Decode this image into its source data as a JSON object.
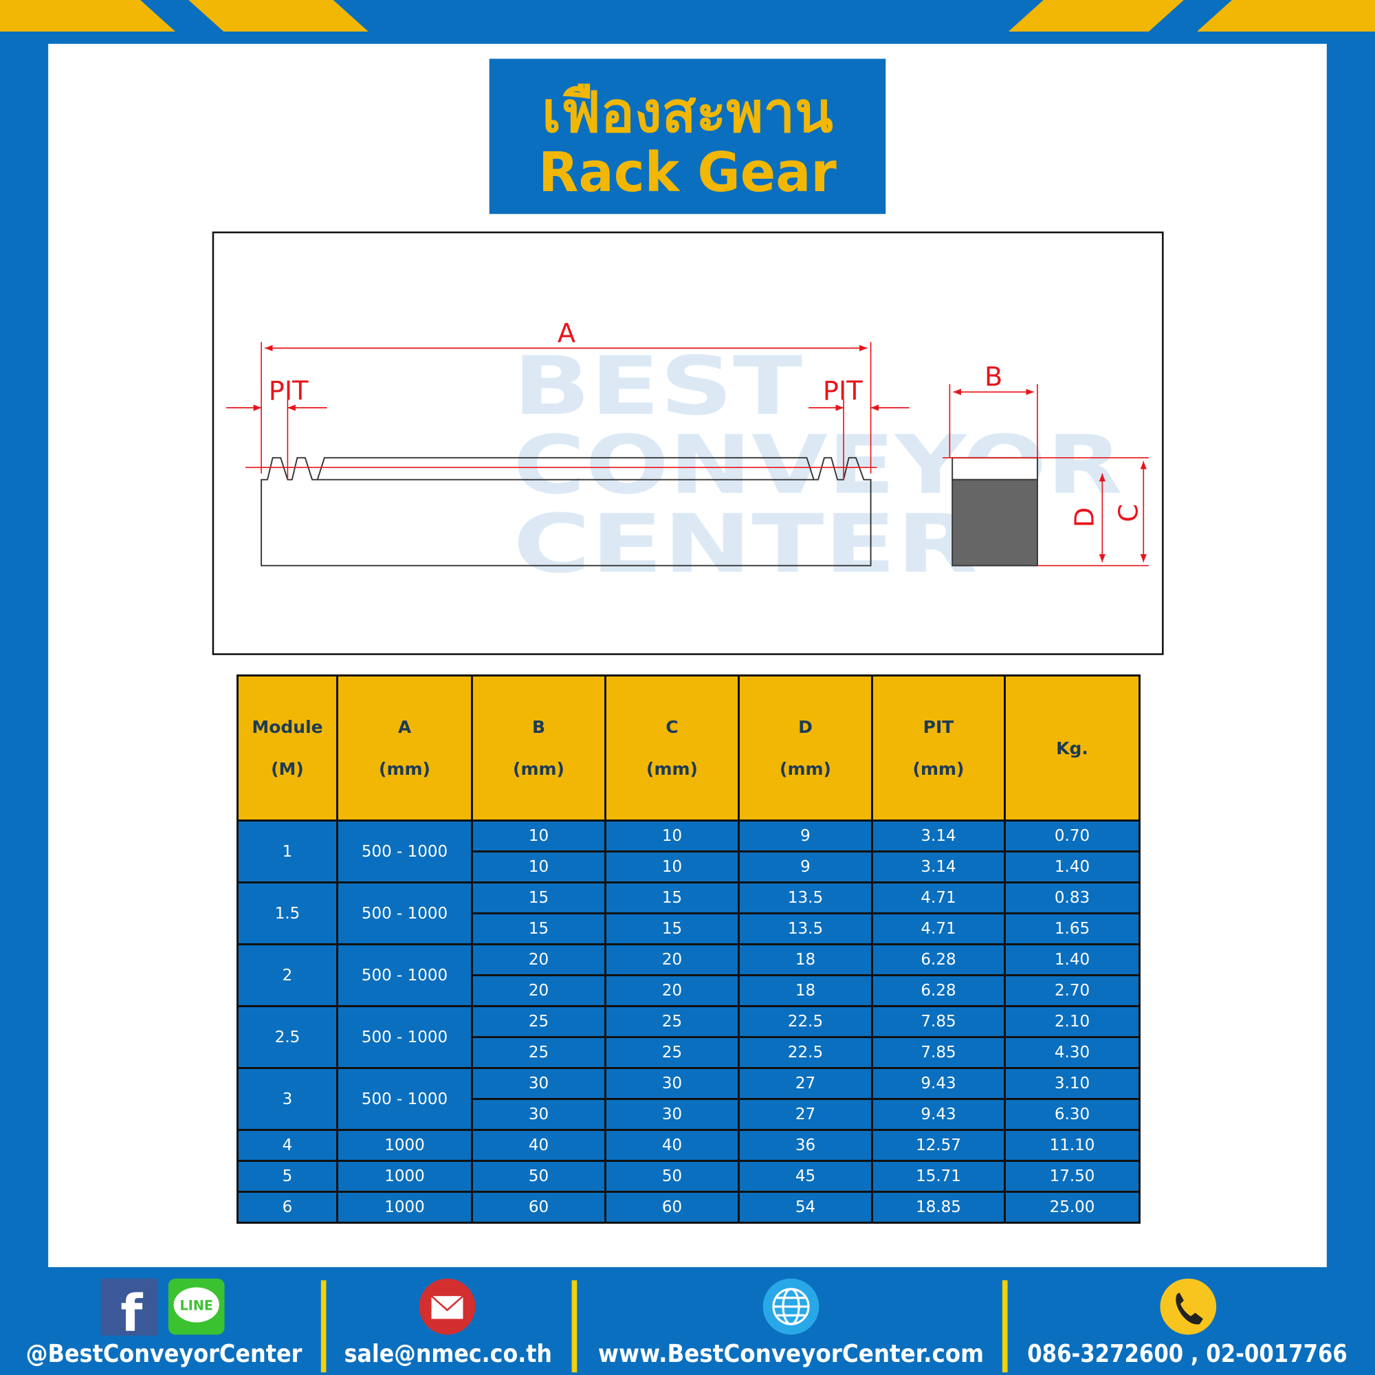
{
  "header": {
    "title_thai": "เฟืองสะพาน",
    "title_english": "Rack Gear"
  },
  "diagram": {
    "label_a": "A",
    "label_pit_left": "PIT",
    "label_pit_right": "PIT",
    "label_b": "B",
    "label_c": "C",
    "label_d": "D",
    "watermark": [
      "BEST",
      "CONVEYOR",
      "CENTER"
    ]
  },
  "table": {
    "header": [
      [
        "Module",
        "(M)"
      ],
      [
        "A",
        "(mm)"
      ],
      [
        "B",
        "(mm)"
      ],
      [
        "C",
        "(mm)"
      ],
      [
        "D",
        "(mm)"
      ],
      [
        "PIT",
        "(mm)"
      ],
      [
        "Kg."
      ]
    ],
    "groups": [
      {
        "module": "1",
        "a": "500 - 1000",
        "rows": [
          [
            "10",
            "10",
            "9",
            "3.14",
            "0.70"
          ],
          [
            "10",
            "10",
            "9",
            "3.14",
            "1.40"
          ]
        ]
      },
      {
        "module": "1.5",
        "a": "500 - 1000",
        "rows": [
          [
            "15",
            "15",
            "13.5",
            "4.71",
            "0.83"
          ],
          [
            "15",
            "15",
            "13.5",
            "4.71",
            "1.65"
          ]
        ]
      },
      {
        "module": "2",
        "a": "500 - 1000",
        "rows": [
          [
            "20",
            "20",
            "18",
            "6.28",
            "1.40"
          ],
          [
            "20",
            "20",
            "18",
            "6.28",
            "2.70"
          ]
        ]
      },
      {
        "module": "2.5",
        "a": "500 - 1000",
        "rows": [
          [
            "25",
            "25",
            "22.5",
            "7.85",
            "2.10"
          ],
          [
            "25",
            "25",
            "22.5",
            "7.85",
            "4.30"
          ]
        ]
      },
      {
        "module": "3",
        "a": "500 - 1000",
        "rows": [
          [
            "30",
            "30",
            "27",
            "9.43",
            "3.10"
          ],
          [
            "30",
            "30",
            "27",
            "9.43",
            "6.30"
          ]
        ]
      },
      {
        "module": "4",
        "a": "1000",
        "rows": [
          [
            "40",
            "40",
            "36",
            "12.57",
            "11.10"
          ]
        ]
      },
      {
        "module": "5",
        "a": "1000",
        "rows": [
          [
            "50",
            "50",
            "45",
            "15.71",
            "17.50"
          ]
        ]
      },
      {
        "module": "6",
        "a": "1000",
        "rows": [
          [
            "60",
            "60",
            "54",
            "18.85",
            "25.00"
          ]
        ]
      }
    ]
  },
  "footer": {
    "facebook_icon": "f",
    "line_icon": "LINE",
    "social": "@BestConveyorCenter",
    "email": "sale@nmec.co.th",
    "website": "www.BestConveyorCenter.com",
    "phone": "086-3272600 , 02-0017766"
  }
}
